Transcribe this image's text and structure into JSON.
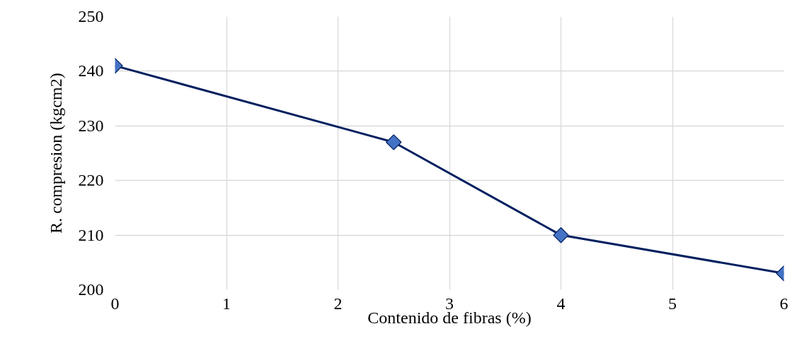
{
  "chart_data": {
    "type": "line",
    "xlabel": "Contenido de fibras (%)",
    "ylabel": "R. compresion (kgcm2)",
    "x": [
      0,
      2.5,
      4,
      6
    ],
    "series": [
      {
        "color": "#002060",
        "colors": [
          "#4472c4",
          "#4472c4",
          "#4472c4",
          "#4472c4"
        ],
        "values": [
          241,
          227,
          210,
          203
        ]
      }
    ],
    "xlim": [
      0,
      6
    ],
    "xticks": [
      0,
      1,
      2,
      3,
      4,
      5,
      6
    ],
    "ylim": [
      200,
      250
    ],
    "yticks": [
      200,
      210,
      220,
      230,
      240,
      250
    ],
    "grid": true,
    "marker": "diamond",
    "line_style": "solid"
  }
}
